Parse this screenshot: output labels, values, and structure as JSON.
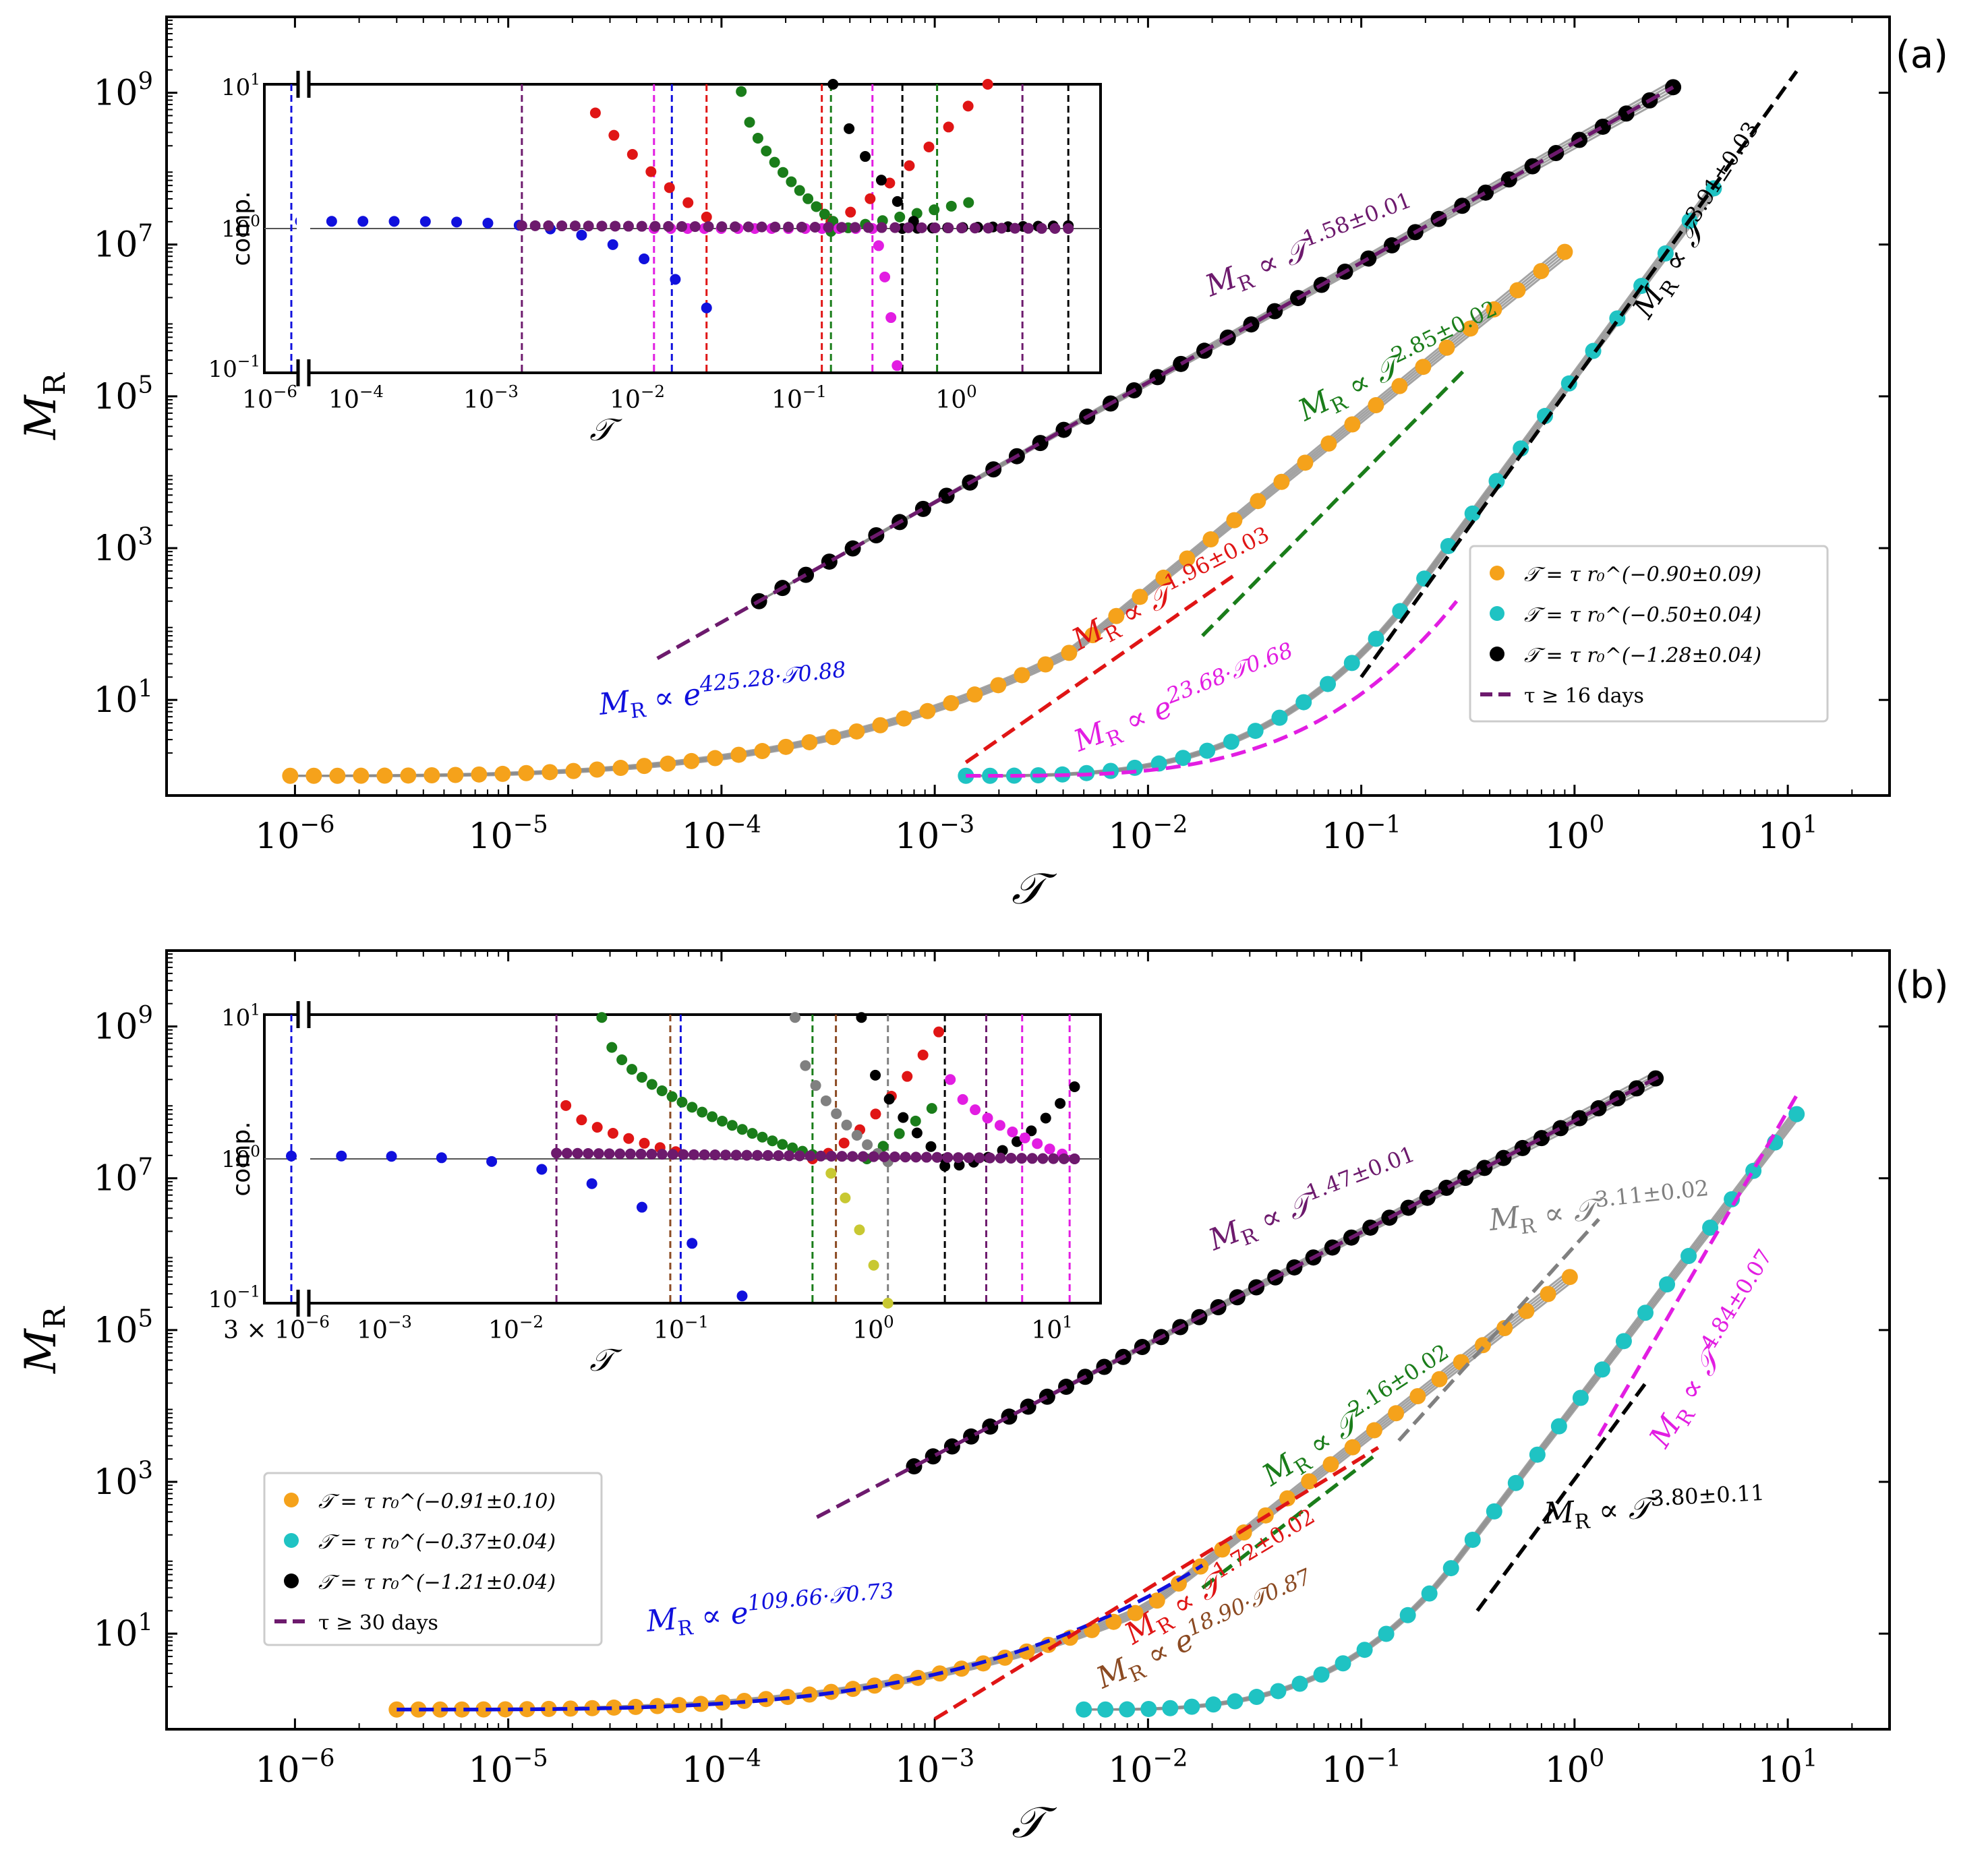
{
  "chart_data": [
    {
      "panel": "(a)",
      "type": "scatter",
      "xscale": "log",
      "yscale": "log",
      "xlim": [
        2.5e-07,
        30
      ],
      "ylim": [
        0.55,
        10000000000.0
      ],
      "xlabel": "𝒯",
      "ylabel": "M",
      "ylabel_sub": "R",
      "xticks": [
        {
          "b": "10",
          "e": "−6"
        },
        {
          "b": "10",
          "e": "−5"
        },
        {
          "b": "10",
          "e": "−4"
        },
        {
          "b": "10",
          "e": "−3"
        },
        {
          "b": "10",
          "e": "−2"
        },
        {
          "b": "10",
          "e": "−1"
        },
        {
          "b": "10",
          "e": "0"
        },
        {
          "b": "10",
          "e": "1"
        }
      ],
      "yticks": [
        {
          "b": "10",
          "e": "1"
        },
        {
          "b": "10",
          "e": "3"
        },
        {
          "b": "10",
          "e": "5"
        },
        {
          "b": "10",
          "e": "7"
        },
        {
          "b": "10",
          "e": "9"
        }
      ],
      "series": [
        {
          "name": "𝒯 = τ r₀^(−0.90±0.09)",
          "color": "#f5a21b",
          "x_range": [
            9.5e-07,
            0.9
          ],
          "n": 55,
          "fit": {
            "kind": "exp",
            "a": 425.28,
            "b": 0.88
          },
          "tail": {
            "x0": 0.0045,
            "x1": 0.9,
            "y0": 45,
            "y1": 8000000.0
          }
        },
        {
          "name": "𝒯 = τ r₀^(−0.50±0.04)",
          "color": "#1fc3c3",
          "x_range": [
            0.0014,
            4.5
          ],
          "n": 32,
          "fit": {
            "kind": "exp",
            "a": 23.68,
            "b": 0.68
          },
          "tail": {
            "x0": 0.15,
            "x1": 4.5,
            "y0": 140,
            "y1": 55000000.0
          }
        },
        {
          "name": "𝒯 = τ r₀^(−1.28±0.04)",
          "color": "#000000",
          "x_range": [
            0.00015,
            2.9
          ],
          "n": 40,
          "fit": {
            "kind": "power",
            "k": 1.58,
            "x0": 0.00015,
            "y0": 200
          }
        }
      ],
      "fit_lines": [
        {
          "color": "#6d1a6d",
          "kind": "power",
          "exponent": 1.58,
          "x0": 0.00015,
          "y0": 200,
          "from": 5e-05,
          "to": 2.9
        },
        {
          "color": "#1010dd",
          "kind": "exp",
          "a": 425.28,
          "b": 0.88,
          "from": 9.5e-07,
          "to": 0.005
        },
        {
          "color": "#e01515",
          "kind": "power",
          "exponent": 1.96,
          "x0": 0.0014,
          "y0": 1.5,
          "from": 0.0014,
          "to": 0.025
        },
        {
          "color": "#1a7d1a",
          "kind": "power",
          "exponent": 2.85,
          "x0": 0.018,
          "y0": 70,
          "from": 0.018,
          "to": 0.3
        },
        {
          "color": "#e21de2",
          "kind": "exp",
          "a": 23.68,
          "b": 0.68,
          "from": 0.0014,
          "to": 0.28
        },
        {
          "color": "#000000",
          "kind": "power",
          "exponent": 3.91,
          "x0": 0.1,
          "y0": 20,
          "from": 0.1,
          "to": 11
        }
      ],
      "annotations": [
        {
          "text": "M_R ∝ 𝒯^1.58±0.01",
          "color": "#6d1a6d"
        },
        {
          "text": "M_R ∝ 𝒯^2.85±0.02",
          "color": "#1a7d1a"
        },
        {
          "text": "M_R ∝ 𝒯^1.96±0.03",
          "color": "#e01515"
        },
        {
          "text": "M_R ∝ e^(23.68·𝒯^0.68)",
          "color": "#e21de2"
        },
        {
          "text": "M_R ∝ e^(425.28·𝒯^0.88)",
          "color": "#1010dd"
        },
        {
          "text": "M_R ∝ 𝒯^3.91±0.03",
          "color": "#000000"
        }
      ],
      "legend": {
        "placement": "right",
        "dash_label": "τ ≥ 16 days"
      },
      "inset": {
        "ylabel": "comp.",
        "xlabel": "𝒯",
        "ytick_top": "10^1",
        "ytick_mid": "10^0",
        "ytick_bot": "10^−1",
        "xticks": [
          "10^−6",
          "10^−4",
          "10^−3",
          "10^−2",
          "10^−1",
          "10^0"
        ],
        "vlines": [
          {
            "x": 1e-06,
            "c": "#1010dd"
          },
          {
            "x": 0.0001,
            "c": "#6d1a6d"
          },
          {
            "x": 0.0014,
            "c": "#e21de2"
          },
          {
            "x": 0.002,
            "c": "#1010dd"
          },
          {
            "x": 0.004,
            "c": "#e01515"
          },
          {
            "x": 0.04,
            "c": "#e01515"
          },
          {
            "x": 0.048,
            "c": "#1a7d1a"
          },
          {
            "x": 0.11,
            "c": "#e21de2"
          },
          {
            "x": 0.2,
            "c": "#000000"
          },
          {
            "x": 0.4,
            "c": "#1a7d1a"
          },
          {
            "x": 2.2,
            "c": "#6d1a6d"
          },
          {
            "x": 5.5,
            "c": "#000000"
          }
        ]
      }
    },
    {
      "panel": "(b)",
      "type": "scatter",
      "xscale": "log",
      "yscale": "log",
      "xlim": [
        2.5e-07,
        30
      ],
      "ylim": [
        0.55,
        10000000000.0
      ],
      "xlabel": "𝒯",
      "ylabel": "M",
      "ylabel_sub": "R",
      "xticks": [
        {
          "b": "10",
          "e": "−6"
        },
        {
          "b": "10",
          "e": "−5"
        },
        {
          "b": "10",
          "e": "−4"
        },
        {
          "b": "10",
          "e": "−3"
        },
        {
          "b": "10",
          "e": "−2"
        },
        {
          "b": "10",
          "e": "−1"
        },
        {
          "b": "10",
          "e": "0"
        },
        {
          "b": "10",
          "e": "1"
        }
      ],
      "yticks": [
        {
          "b": "10",
          "e": "1"
        },
        {
          "b": "10",
          "e": "3"
        },
        {
          "b": "10",
          "e": "5"
        },
        {
          "b": "10",
          "e": "7"
        },
        {
          "b": "10",
          "e": "9"
        }
      ],
      "series": [
        {
          "name": "𝒯 = τ r₀^(−0.91±0.10)",
          "color": "#f5a21b",
          "x_range": [
            3e-06,
            0.95
          ],
          "n": 55,
          "fit": {
            "kind": "exp",
            "a": 109.66,
            "b": 0.73
          },
          "tail": {
            "x0": 0.01,
            "x1": 0.95,
            "y0": 22,
            "y1": 500000.0
          }
        },
        {
          "name": "𝒯 = τ r₀^(−0.37±0.04)",
          "color": "#1fc3c3",
          "x_range": [
            0.005,
            11
          ],
          "n": 34,
          "fit": {
            "kind": "exp",
            "a": 18.9,
            "b": 0.87
          },
          "tail": {
            "x0": 0.25,
            "x1": 11,
            "y0": 60,
            "y1": 70000000.0
          }
        },
        {
          "name": "𝒯 = τ r₀^(−1.21±0.04)",
          "color": "#000000",
          "x_range": [
            0.0008,
            2.4
          ],
          "n": 40,
          "fit": {
            "kind": "power",
            "k": 1.47,
            "x0": 0.0008,
            "y0": 1600
          }
        }
      ],
      "fit_lines": [
        {
          "color": "#6d1a6d",
          "kind": "power",
          "exponent": 1.47,
          "x0": 0.0008,
          "y0": 1600,
          "from": 0.00028,
          "to": 2.6
        },
        {
          "color": "#1010dd",
          "kind": "exp",
          "a": 109.66,
          "b": 0.73,
          "from": 3e-06,
          "to": 0.018
        },
        {
          "color": "#e01515",
          "kind": "power",
          "exponent": 1.72,
          "x0": 0.001,
          "y0": 0.75,
          "from": 0.001,
          "to": 0.12
        },
        {
          "color": "#1a7d1a",
          "kind": "power",
          "exponent": 2.16,
          "x0": 0.018,
          "y0": 40,
          "from": 0.018,
          "to": 0.12
        },
        {
          "color": "#808080",
          "kind": "power",
          "exponent": 3.11,
          "x0": 0.15,
          "y0": 3500,
          "from": 0.15,
          "to": 1.3
        },
        {
          "color": "#8b4a22",
          "kind": "exp",
          "a": 18.9,
          "b": 0.87,
          "from": 0.005,
          "to": 0.28
        },
        {
          "color": "#000000",
          "kind": "power",
          "exponent": 3.8,
          "x0": 0.35,
          "y0": 20,
          "from": 0.35,
          "to": 2.2
        },
        {
          "color": "#e21de2",
          "kind": "power",
          "exponent": 4.84,
          "x0": 1.3,
          "y0": 4000,
          "from": 1.3,
          "to": 11
        }
      ],
      "annotations": [
        {
          "text": "M_R ∝ 𝒯^1.47±0.01",
          "color": "#6d1a6d"
        },
        {
          "text": "M_R ∝ 𝒯^3.11±0.02",
          "color": "#808080"
        },
        {
          "text": "M_R ∝ 𝒯^2.16±0.02",
          "color": "#1a7d1a"
        },
        {
          "text": "M_R ∝ 𝒯^1.72±0.02",
          "color": "#e01515"
        },
        {
          "text": "M_R ∝ e^(18.90·𝒯^0.87)",
          "color": "#8b4a22"
        },
        {
          "text": "M_R ∝ e^(109.66·𝒯^0.73)",
          "color": "#1010dd"
        },
        {
          "text": "M_R ∝ 𝒯^3.80±0.11",
          "color": "#000000"
        },
        {
          "text": "M_R ∝ 𝒯^4.84±0.07",
          "color": "#e21de2"
        }
      ],
      "legend": {
        "placement": "bottom-left",
        "dash_label": "τ ≥ 30 days"
      },
      "inset": {
        "ylabel": "comp.",
        "xlabel": "𝒯",
        "ytick_top": "10^1",
        "ytick_mid": "10^0",
        "ytick_bot": "10^−1",
        "xticks": [
          "3 × 10^−6",
          "10^−3",
          "10^−2",
          "10^−1",
          "10^0",
          "10^1"
        ],
        "vlines": [
          {
            "x": 3e-06,
            "c": "#1010dd"
          },
          {
            "x": 0.0005,
            "c": "#6d1a6d"
          },
          {
            "x": 0.0045,
            "c": "#8b4a22"
          },
          {
            "x": 0.0055,
            "c": "#1010dd"
          },
          {
            "x": 0.07,
            "c": "#1a7d1a"
          },
          {
            "x": 0.11,
            "c": "#8b4a22"
          },
          {
            "x": 0.3,
            "c": "#808080"
          },
          {
            "x": 0.9,
            "c": "#000000"
          },
          {
            "x": 2,
            "c": "#6d1a6d"
          },
          {
            "x": 4,
            "c": "#e21de2"
          },
          {
            "x": 10,
            "c": "#e21de2"
          }
        ]
      }
    }
  ],
  "labels": {
    "panel_a": "(a)",
    "panel_b": "(b)"
  }
}
